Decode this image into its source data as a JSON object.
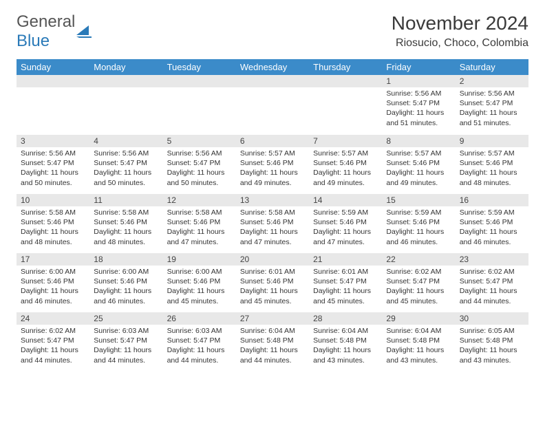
{
  "logo": {
    "text_gray": "General",
    "text_blue": "Blue",
    "shape_color": "#2a7ab8"
  },
  "header": {
    "month_title": "November 2024",
    "location": "Riosucio, Choco, Colombia"
  },
  "colors": {
    "header_row_bg": "#3b8bc9",
    "header_row_text": "#ffffff",
    "daynum_bg": "#e8e8e8",
    "body_text": "#333333",
    "page_bg": "#ffffff"
  },
  "typography": {
    "month_title_fontsize": 28,
    "location_fontsize": 16,
    "weekday_fontsize": 13,
    "daynum_fontsize": 12,
    "body_fontsize": 10.5
  },
  "weekdays": [
    "Sunday",
    "Monday",
    "Tuesday",
    "Wednesday",
    "Thursday",
    "Friday",
    "Saturday"
  ],
  "weeks": [
    [
      null,
      null,
      null,
      null,
      null,
      {
        "n": "1",
        "sunrise": "5:56 AM",
        "sunset": "5:47 PM",
        "daylight": "11 hours and 51 minutes."
      },
      {
        "n": "2",
        "sunrise": "5:56 AM",
        "sunset": "5:47 PM",
        "daylight": "11 hours and 51 minutes."
      }
    ],
    [
      {
        "n": "3",
        "sunrise": "5:56 AM",
        "sunset": "5:47 PM",
        "daylight": "11 hours and 50 minutes."
      },
      {
        "n": "4",
        "sunrise": "5:56 AM",
        "sunset": "5:47 PM",
        "daylight": "11 hours and 50 minutes."
      },
      {
        "n": "5",
        "sunrise": "5:56 AM",
        "sunset": "5:47 PM",
        "daylight": "11 hours and 50 minutes."
      },
      {
        "n": "6",
        "sunrise": "5:57 AM",
        "sunset": "5:46 PM",
        "daylight": "11 hours and 49 minutes."
      },
      {
        "n": "7",
        "sunrise": "5:57 AM",
        "sunset": "5:46 PM",
        "daylight": "11 hours and 49 minutes."
      },
      {
        "n": "8",
        "sunrise": "5:57 AM",
        "sunset": "5:46 PM",
        "daylight": "11 hours and 49 minutes."
      },
      {
        "n": "9",
        "sunrise": "5:57 AM",
        "sunset": "5:46 PM",
        "daylight": "11 hours and 48 minutes."
      }
    ],
    [
      {
        "n": "10",
        "sunrise": "5:58 AM",
        "sunset": "5:46 PM",
        "daylight": "11 hours and 48 minutes."
      },
      {
        "n": "11",
        "sunrise": "5:58 AM",
        "sunset": "5:46 PM",
        "daylight": "11 hours and 48 minutes."
      },
      {
        "n": "12",
        "sunrise": "5:58 AM",
        "sunset": "5:46 PM",
        "daylight": "11 hours and 47 minutes."
      },
      {
        "n": "13",
        "sunrise": "5:58 AM",
        "sunset": "5:46 PM",
        "daylight": "11 hours and 47 minutes."
      },
      {
        "n": "14",
        "sunrise": "5:59 AM",
        "sunset": "5:46 PM",
        "daylight": "11 hours and 47 minutes."
      },
      {
        "n": "15",
        "sunrise": "5:59 AM",
        "sunset": "5:46 PM",
        "daylight": "11 hours and 46 minutes."
      },
      {
        "n": "16",
        "sunrise": "5:59 AM",
        "sunset": "5:46 PM",
        "daylight": "11 hours and 46 minutes."
      }
    ],
    [
      {
        "n": "17",
        "sunrise": "6:00 AM",
        "sunset": "5:46 PM",
        "daylight": "11 hours and 46 minutes."
      },
      {
        "n": "18",
        "sunrise": "6:00 AM",
        "sunset": "5:46 PM",
        "daylight": "11 hours and 46 minutes."
      },
      {
        "n": "19",
        "sunrise": "6:00 AM",
        "sunset": "5:46 PM",
        "daylight": "11 hours and 45 minutes."
      },
      {
        "n": "20",
        "sunrise": "6:01 AM",
        "sunset": "5:46 PM",
        "daylight": "11 hours and 45 minutes."
      },
      {
        "n": "21",
        "sunrise": "6:01 AM",
        "sunset": "5:47 PM",
        "daylight": "11 hours and 45 minutes."
      },
      {
        "n": "22",
        "sunrise": "6:02 AM",
        "sunset": "5:47 PM",
        "daylight": "11 hours and 45 minutes."
      },
      {
        "n": "23",
        "sunrise": "6:02 AM",
        "sunset": "5:47 PM",
        "daylight": "11 hours and 44 minutes."
      }
    ],
    [
      {
        "n": "24",
        "sunrise": "6:02 AM",
        "sunset": "5:47 PM",
        "daylight": "11 hours and 44 minutes."
      },
      {
        "n": "25",
        "sunrise": "6:03 AM",
        "sunset": "5:47 PM",
        "daylight": "11 hours and 44 minutes."
      },
      {
        "n": "26",
        "sunrise": "6:03 AM",
        "sunset": "5:47 PM",
        "daylight": "11 hours and 44 minutes."
      },
      {
        "n": "27",
        "sunrise": "6:04 AM",
        "sunset": "5:48 PM",
        "daylight": "11 hours and 44 minutes."
      },
      {
        "n": "28",
        "sunrise": "6:04 AM",
        "sunset": "5:48 PM",
        "daylight": "11 hours and 43 minutes."
      },
      {
        "n": "29",
        "sunrise": "6:04 AM",
        "sunset": "5:48 PM",
        "daylight": "11 hours and 43 minutes."
      },
      {
        "n": "30",
        "sunrise": "6:05 AM",
        "sunset": "5:48 PM",
        "daylight": "11 hours and 43 minutes."
      }
    ]
  ],
  "labels": {
    "sunrise": "Sunrise:",
    "sunset": "Sunset:",
    "daylight": "Daylight:"
  }
}
